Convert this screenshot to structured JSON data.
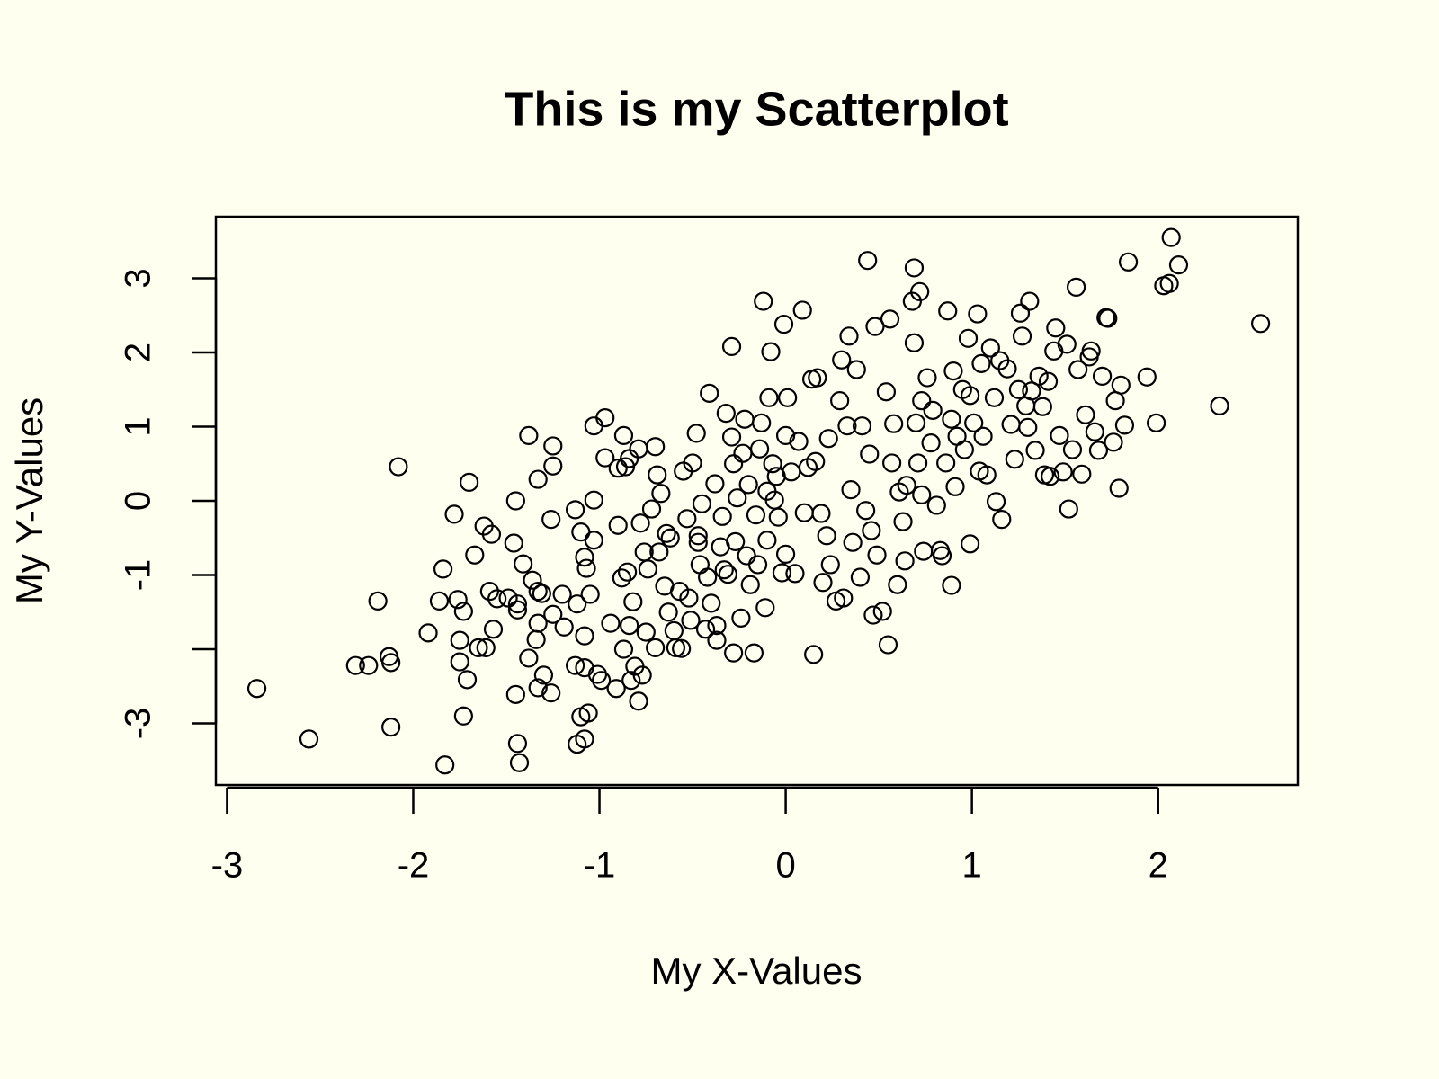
{
  "chart_data": {
    "type": "scatter",
    "title": "This is my Scatterplot",
    "x_label": "My X-Values",
    "y_label": "My Y-Values",
    "color": "#000000",
    "xlim": [
      -3.06,
      2.75
    ],
    "ylim": [
      -3.83,
      3.83
    ],
    "xticks": [
      -3,
      -2,
      -1,
      0,
      1,
      2
    ],
    "yticks": [
      -3,
      {
        "value": -2,
        "label": null
      },
      -1,
      0,
      1,
      2,
      3
    ],
    "x": [
      -2.84,
      -2.56,
      -2.31,
      -2.24,
      -2.13,
      -2.12,
      -2.12,
      -2.19,
      -2.08,
      -1.92,
      -1.86,
      -1.84,
      -1.83,
      -1.78,
      -1.76,
      -1.75,
      -1.75,
      -1.73,
      -1.71,
      -1.73,
      -1.7,
      -1.67,
      -1.65,
      -1.61,
      -1.62,
      -1.58,
      -1.59,
      -1.57,
      -1.55,
      -1.49,
      -1.46,
      -1.45,
      -1.44,
      -1.44,
      -1.45,
      -1.44,
      -1.43,
      -1.41,
      -1.38,
      -1.38,
      -1.36,
      -1.34,
      -1.33,
      -1.33,
      -1.33,
      -1.31,
      -1.33,
      -1.3,
      -1.26,
      -1.25,
      -1.25,
      -1.26,
      -1.25,
      -1.2,
      -1.19,
      -1.13,
      -1.12,
      -1.13,
      -1.12,
      -1.1,
      -1.08,
      -1.08,
      -1.1,
      -1.08,
      -1.07,
      -1.08,
      -1.06,
      -1.05,
      -1.03,
      -1.03,
      -1.03,
      -1.01,
      -0.99,
      -0.97,
      -0.97,
      -0.94,
      -0.91,
      -0.9,
      -0.9,
      -0.88,
      -0.87,
      -0.87,
      -0.85,
      -0.86,
      -0.84,
      -0.84,
      -0.83,
      -0.82,
      -0.81,
      -0.79,
      -0.78,
      -0.77,
      -0.79,
      -0.76,
      -0.75,
      -0.74,
      -0.72,
      -0.7,
      -0.7,
      -0.69,
      -0.68,
      -0.67,
      -0.65,
      -0.64,
      -0.63,
      -0.62,
      -0.6,
      -0.59,
      -0.57,
      -0.56,
      -0.55,
      -0.53,
      -0.52,
      -0.51,
      -0.5,
      -0.48,
      -0.47,
      -0.47,
      -0.46,
      -0.45,
      -0.43,
      -0.42,
      -0.41,
      -0.4,
      -0.38,
      -0.37,
      -0.37,
      -0.35,
      -0.34,
      -0.33,
      -0.32,
      -0.31,
      -0.29,
      -0.29,
      -0.28,
      -0.28,
      -0.27,
      -0.26,
      -0.24,
      -0.23,
      -0.22,
      -0.21,
      -0.2,
      -0.19,
      -0.17,
      -0.16,
      -0.15,
      -0.14,
      -0.13,
      -0.12,
      -0.11,
      -0.1,
      -0.1,
      -0.09,
      -0.08,
      -0.07,
      -0.06,
      -0.05,
      -0.04,
      -0.02,
      -0.01,
      0.0,
      0.0,
      0.01,
      0.03,
      0.05,
      0.07,
      0.09,
      0.1,
      0.12,
      0.14,
      0.15,
      0.16,
      0.17,
      0.19,
      0.2,
      0.22,
      0.23,
      0.24,
      0.27,
      0.29,
      0.3,
      0.31,
      0.33,
      0.34,
      0.35,
      0.36,
      0.38,
      0.4,
      0.41,
      0.43,
      0.44,
      0.45,
      0.46,
      0.47,
      0.48,
      0.49,
      0.52,
      0.54,
      0.55,
      0.56,
      0.57,
      0.58,
      0.6,
      0.61,
      0.63,
      0.64,
      0.65,
      0.68,
      0.69,
      0.69,
      0.7,
      0.71,
      0.72,
      0.73,
      0.73,
      0.74,
      0.76,
      0.78,
      0.79,
      0.81,
      0.83,
      0.84,
      0.86,
      0.87,
      0.89,
      0.89,
      0.9,
      0.91,
      0.92,
      0.95,
      0.96,
      0.98,
      0.99,
      0.99,
      1.01,
      1.03,
      1.04,
      1.05,
      1.06,
      1.08,
      1.1,
      1.12,
      1.13,
      1.15,
      1.16,
      1.19,
      1.21,
      1.23,
      1.25,
      1.26,
      1.27,
      1.29,
      1.3,
      1.31,
      1.32,
      1.34,
      1.36,
      1.38,
      1.39,
      1.41,
      1.42,
      1.44,
      1.45,
      1.47,
      1.49,
      1.51,
      1.52,
      1.54,
      1.56,
      1.57,
      1.59,
      1.61,
      1.63,
      1.64,
      1.66,
      1.68,
      1.7,
      1.72,
      1.73,
      1.76,
      1.77,
      1.79,
      1.8,
      1.82,
      1.84,
      1.94,
      1.99,
      2.03,
      2.06,
      2.07,
      2.11,
      2.33,
      2.55
    ],
    "values": [
      -2.53,
      -3.21,
      -2.22,
      -2.22,
      -2.1,
      -2.18,
      -3.05,
      -1.35,
      0.46,
      -1.78,
      -1.35,
      -0.92,
      -3.56,
      -0.18,
      -1.33,
      -1.88,
      -2.17,
      -1.49,
      -2.41,
      -2.9,
      0.25,
      -0.73,
      -1.98,
      -1.98,
      -0.34,
      -0.45,
      -1.22,
      -1.73,
      -1.32,
      -1.31,
      -0.57,
      0.0,
      -1.39,
      -1.47,
      -2.61,
      -3.27,
      -3.53,
      -0.85,
      0.88,
      -2.12,
      -1.07,
      -1.87,
      0.29,
      -1.65,
      -1.22,
      -1.25,
      -2.52,
      -2.35,
      -2.59,
      0.74,
      0.47,
      -0.25,
      -1.53,
      -1.26,
      -1.7,
      -0.12,
      -1.39,
      -2.22,
      -3.28,
      -2.91,
      -2.25,
      -3.21,
      -0.42,
      -0.76,
      -0.91,
      -1.82,
      -2.86,
      -1.26,
      0.01,
      1.01,
      -0.53,
      -2.34,
      -2.42,
      0.58,
      1.12,
      -1.65,
      -2.53,
      -0.33,
      0.44,
      -1.04,
      -2.0,
      0.88,
      -0.96,
      0.46,
      0.57,
      -1.68,
      -2.42,
      -1.36,
      -2.23,
      -2.7,
      -0.3,
      -2.35,
      0.7,
      -0.69,
      -1.77,
      -0.92,
      -0.11,
      -1.98,
      0.73,
      0.35,
      -0.69,
      0.1,
      -1.15,
      -0.44,
      -1.5,
      -0.5,
      -1.75,
      -1.98,
      -1.22,
      -1.99,
      0.4,
      -0.24,
      -1.31,
      -1.61,
      0.51,
      0.91,
      -0.56,
      -0.47,
      -0.86,
      -0.04,
      -1.73,
      -1.03,
      1.45,
      -1.38,
      0.23,
      -1.68,
      -1.88,
      -0.62,
      -0.21,
      -0.93,
      1.18,
      -0.99,
      0.86,
      2.08,
      -2.05,
      0.5,
      -0.55,
      0.04,
      -1.58,
      0.64,
      1.1,
      -0.74,
      0.22,
      -1.13,
      -2.05,
      -0.19,
      -0.86,
      0.7,
      1.05,
      2.69,
      -1.44,
      0.13,
      -0.53,
      1.39,
      2.01,
      0.5,
      0.01,
      0.33,
      -0.22,
      -0.97,
      2.38,
      0.88,
      -0.72,
      1.39,
      0.39,
      -0.98,
      0.8,
      2.57,
      -0.16,
      0.45,
      1.64,
      -2.07,
      0.53,
      1.66,
      -0.17,
      -1.1,
      -0.47,
      0.84,
      -0.86,
      -1.35,
      1.35,
      1.9,
      -1.31,
      1.01,
      2.22,
      0.15,
      -0.56,
      1.77,
      -1.03,
      1.01,
      -0.13,
      3.24,
      0.63,
      -0.4,
      -1.54,
      2.35,
      -0.73,
      -1.49,
      1.47,
      -1.94,
      2.45,
      0.51,
      1.04,
      -1.13,
      0.12,
      -0.28,
      -0.81,
      0.21,
      2.69,
      3.14,
      2.13,
      1.05,
      0.51,
      2.82,
      1.35,
      0.08,
      -0.68,
      1.66,
      0.78,
      1.22,
      -0.06,
      -0.67,
      -0.74,
      0.51,
      2.56,
      1.1,
      -1.14,
      1.75,
      0.19,
      0.87,
      1.5,
      0.69,
      2.19,
      1.42,
      -0.58,
      1.05,
      2.52,
      0.4,
      1.85,
      0.87,
      0.35,
      2.06,
      1.39,
      -0.01,
      1.89,
      -0.25,
      1.78,
      1.03,
      0.56,
      1.5,
      2.53,
      2.22,
      1.28,
      0.99,
      2.69,
      1.48,
      0.68,
      1.68,
      1.27,
      0.35,
      1.61,
      0.33,
      2.02,
      2.33,
      0.88,
      0.39,
      2.11,
      -0.11,
      0.69,
      2.88,
      1.77,
      0.36,
      1.16,
      1.94,
      2.02,
      0.93,
      0.68,
      1.68,
      2.47,
      2.46,
      0.79,
      1.35,
      0.17,
      1.56,
      1.02,
      3.22,
      1.67,
      1.05,
      2.9,
      2.93,
      3.55,
      3.18,
      1.28,
      2.39
    ]
  }
}
